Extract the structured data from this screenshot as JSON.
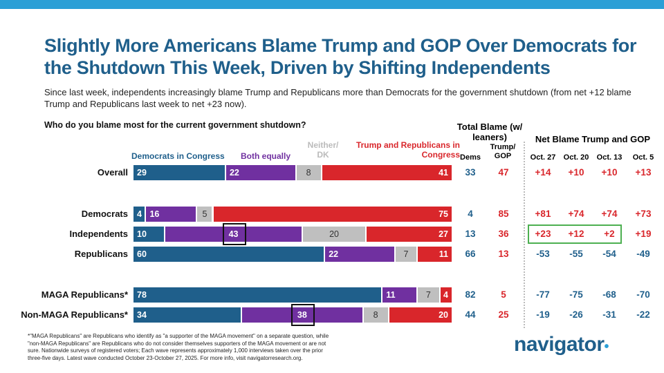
{
  "title": "Slightly More Americans Blame Trump and GOP Over Democrats for the Shutdown This Week, Driven by Shifting Independents",
  "subtitle": "Since last week, independents increasingly blame Trump and Republicans more than Democrats for the government shutdown (from net +12 blame Trump and Republicans last week to net +23 now).",
  "question": "Who do you blame most for the current government shutdown?",
  "colors": {
    "democrats": "#1f5f8b",
    "both": "#7030a0",
    "neither": "#bfbfbf",
    "trump": "#d9262b",
    "accent_green": "#4caf50"
  },
  "total_blame": {
    "title": "Total Blame (w/ leaners)",
    "dems_label": "Dems",
    "trump_label": "Trump/ GOP"
  },
  "net_blame": {
    "title": "Net Blame Trump and GOP",
    "waves": [
      "Oct. 27",
      "Oct. 20",
      "Oct. 13",
      "Oct. 5"
    ]
  },
  "chart_data": {
    "type": "bar",
    "stacked": true,
    "orientation": "horizontal",
    "series": [
      {
        "name": "Democrats in Congress",
        "color": "#1f5f8b",
        "values": [
          29,
          4,
          10,
          60,
          78,
          34
        ]
      },
      {
        "name": "Both equally",
        "color": "#7030a0",
        "values": [
          22,
          16,
          43,
          22,
          11,
          38
        ]
      },
      {
        "name": "Neither/ DK",
        "color": "#bfbfbf",
        "values": [
          8,
          5,
          20,
          7,
          7,
          8
        ]
      },
      {
        "name": "Trump and Republicans in Congress",
        "color": "#d9262b",
        "values": [
          41,
          75,
          27,
          11,
          4,
          20
        ]
      }
    ],
    "categories": [
      "Overall",
      "Democrats",
      "Independents",
      "Republicans",
      "MAGA Republicans*",
      "Non-MAGA Republicans*"
    ],
    "highlighted": [
      {
        "category": "Independents",
        "series": "Both equally"
      },
      {
        "category": "Non-MAGA Republicans*",
        "series": "Both equally"
      }
    ]
  },
  "table": {
    "dems": [
      "33",
      "4",
      "13",
      "66",
      "82",
      "44"
    ],
    "trump": [
      "47",
      "85",
      "36",
      "13",
      "5",
      "25"
    ],
    "net": [
      [
        "+14",
        "+10",
        "+10",
        "+13"
      ],
      [
        "+81",
        "+74",
        "+74",
        "+73"
      ],
      [
        "+23",
        "+12",
        "+2",
        "+19"
      ],
      [
        "-53",
        "-55",
        "-54",
        "-49"
      ],
      [
        "-77",
        "-75",
        "-68",
        "-70"
      ],
      [
        "-19",
        "-26",
        "-31",
        "-22"
      ]
    ]
  },
  "footnote": "*\"MAGA Republicans\" are Republicans who identify as \"a supporter of the MAGA movement\" on a separate question, while \"non-MAGA Republicans\" are Republicans who do not consider themselves supporters of the MAGA movement or are not sure. Nationwide surveys of registered voters; Each wave represents approximately 1,000 interviews taken over the prior three-five days. Latest wave conducted October 23-October 27, 2025. For more info, visit navigatorresearch.org.",
  "logo": "navigator"
}
